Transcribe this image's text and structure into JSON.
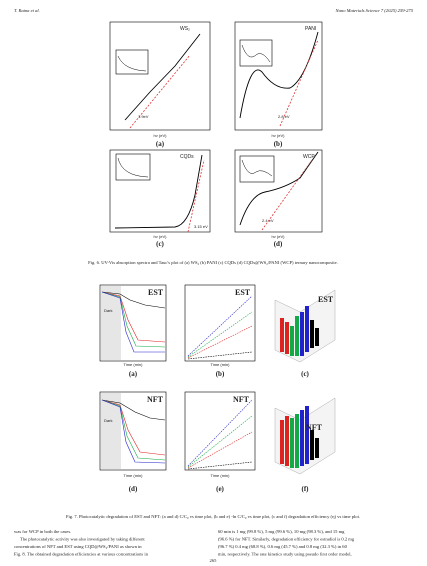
{
  "header": {
    "author": "T. Ratna et al.",
    "journal": "Nano Materials Science 7 (2025) 259-275"
  },
  "figure6": {
    "panels": [
      {
        "label": "(a)",
        "tag": "WS₂",
        "gap": "1.9eV",
        "x_label": "hν (eV)"
      },
      {
        "label": "(b)",
        "tag": "PANI",
        "gap": "2.8 eV",
        "x_label": "hν (eV)"
      },
      {
        "label": "(c)",
        "tag": "CQDs",
        "gap": "3.15 eV",
        "x_label": "hν (eV)"
      },
      {
        "label": "(d)",
        "tag": "WCP",
        "gap": "2.4 eV",
        "x_label": "hν (eV)"
      }
    ],
    "caption": "Fig. 6. UV-Vis absorption spectra and Tauc's plot of (a) WS₂ (b) PANI (c) CQDs (d) CQDs@WS₂/PANI (WCP) ternary nanocomposite."
  },
  "figure7": {
    "panels": [
      {
        "label": "(a)",
        "tag": "EST",
        "note": "Dark",
        "x_label": "Time (min)"
      },
      {
        "label": "(b)",
        "tag": "EST",
        "x_label": "Time (min)"
      },
      {
        "label": "(c)",
        "tag": "EST"
      },
      {
        "label": "(d)",
        "tag": "NFT",
        "note": "Dark",
        "x_label": "Time (min)"
      },
      {
        "label": "(e)",
        "tag": "NFT",
        "x_label": "Time (min)"
      },
      {
        "label": "(f)",
        "tag": "NFT"
      }
    ],
    "caption": "Fig. 7. Photocatalytic degradation of EST and NFT: (a and d) C/C₀ vs time plot, (b and e) -ln C/C₀ vs time plot, (c and f) degradation efficiency (η) vs time plot."
  },
  "body": {
    "left": [
      "was for WCP in both the cases.",
      "The photocatalytic activity was also investigated by taking different",
      "concentrations of NFT and EST using CQD@WS₂/PANI as shown in",
      "Fig. 8. The obtained degradation efficiencies at various concentrations in"
    ],
    "right": [
      "60 min is 1 mg (99.8 %), 5 mg (99.6 %), 10 mg (98.3 %), and 15 mg",
      "(96.6 %) for NFT. Similarly, degradation efficiency for estradiol is 0.2 mg",
      "(96.7 %) 0.4 mg (68.8 %), 0.6 mg (45.7 %) and 0.8 mg (32.3 %) in 60",
      "min, respectively. The rate kinetics study using pseudo first order model,"
    ]
  },
  "page_number": "265"
}
